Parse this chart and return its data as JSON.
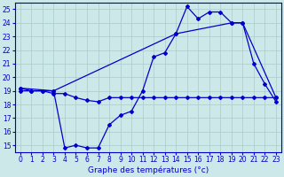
{
  "title": "Graphe des températures (°c)",
  "bg_color": "#cce8e8",
  "grid_color": "#aacccc",
  "line_color": "#0000cc",
  "ylim": [
    14.5,
    25.5
  ],
  "xlim": [
    -0.5,
    23.5
  ],
  "yticks": [
    15,
    16,
    17,
    18,
    19,
    20,
    21,
    22,
    23,
    24,
    25
  ],
  "xticks": [
    0,
    1,
    2,
    3,
    4,
    5,
    6,
    7,
    8,
    9,
    10,
    11,
    12,
    13,
    14,
    15,
    16,
    17,
    18,
    19,
    20,
    21,
    22,
    23
  ],
  "series1_x": [
    0,
    1,
    2,
    3,
    4,
    5,
    6,
    7,
    8,
    9,
    10,
    11,
    12,
    13,
    14,
    15,
    16,
    17,
    18,
    19,
    20,
    21,
    22,
    23
  ],
  "series1_y": [
    19.0,
    19.0,
    19.0,
    19.0,
    14.8,
    15.0,
    14.8,
    14.8,
    16.5,
    17.2,
    17.5,
    19.0,
    21.5,
    21.8,
    23.2,
    25.2,
    24.3,
    24.8,
    24.8,
    24.0,
    24.0,
    21.0,
    19.5,
    18.2
  ],
  "series2_x": [
    0,
    1,
    2,
    3,
    4,
    5,
    6,
    7,
    8,
    9,
    10,
    11,
    12,
    13,
    14,
    15,
    16,
    17,
    18,
    19,
    20,
    21,
    22,
    23
  ],
  "series2_y": [
    19.2,
    19.0,
    19.0,
    18.8,
    18.8,
    18.5,
    18.3,
    18.2,
    18.5,
    18.5,
    18.5,
    18.5,
    18.5,
    18.5,
    18.5,
    18.5,
    18.5,
    18.5,
    18.5,
    18.5,
    18.5,
    18.5,
    18.5,
    18.5
  ],
  "series3_x": [
    0,
    3,
    14,
    19,
    20,
    23
  ],
  "series3_y": [
    19.2,
    19.0,
    23.2,
    24.0,
    24.0,
    18.5
  ]
}
